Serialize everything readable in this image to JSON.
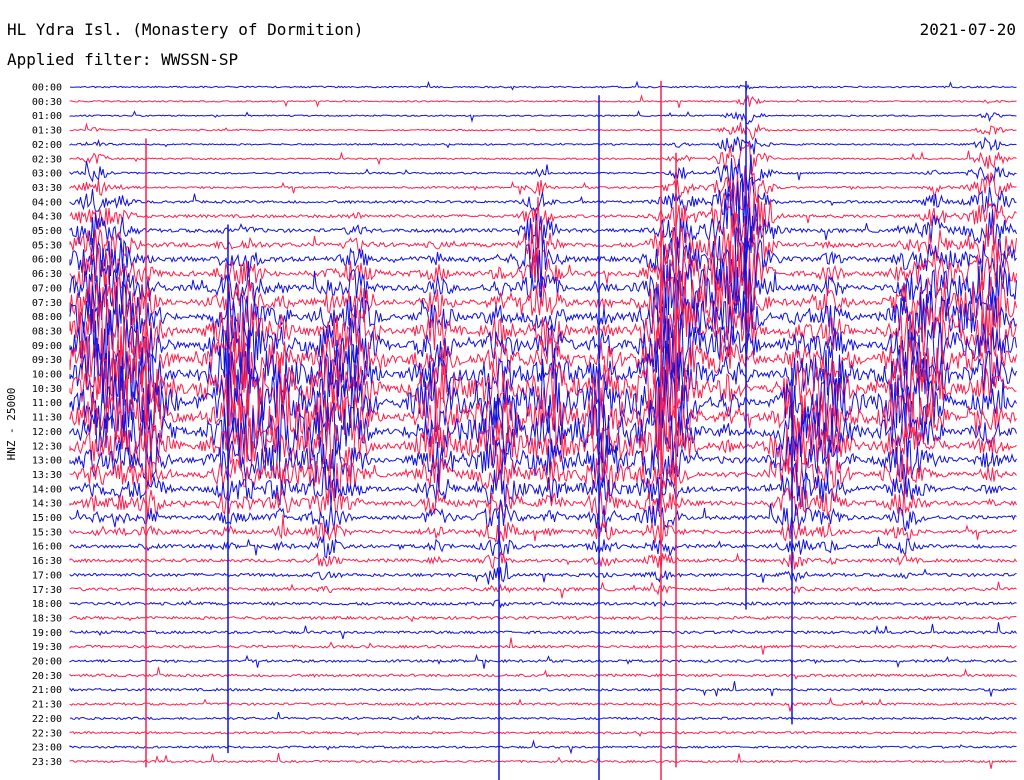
{
  "header": {
    "title": "HL Ydra Isl. (Monastery of Dormition)",
    "date": "2021-07-20",
    "filter": "Applied filter: WWSSN-SP"
  },
  "station": {
    "channel_label": "HNZ - 25000"
  },
  "colors": {
    "trace_a": "#1010e0",
    "trace_b": "#ff1f4b",
    "background": "#ffffff",
    "text": "#000000"
  },
  "chart_data": {
    "type": "line",
    "title": "",
    "xlabel": "",
    "ylabel": "HNZ - 25000",
    "time_labels": [
      "00:00",
      "00:30",
      "01:00",
      "01:30",
      "02:00",
      "02:30",
      "03:00",
      "03:30",
      "04:00",
      "04:30",
      "05:00",
      "05:30",
      "06:00",
      "06:30",
      "07:00",
      "07:30",
      "08:00",
      "08:30",
      "09:00",
      "09:30",
      "10:00",
      "10:30",
      "11:00",
      "11:30",
      "12:00",
      "12:30",
      "13:00",
      "13:30",
      "14:00",
      "14:30",
      "15:00",
      "15:30",
      "16:00",
      "16:30",
      "17:00",
      "17:30",
      "18:00",
      "18:30",
      "19:00",
      "19:30",
      "20:00",
      "20:30",
      "21:00",
      "21:30",
      "22:00",
      "22:30",
      "23:00",
      "23:30"
    ],
    "row_duration_minutes": 30,
    "trace_color_order": [
      "trace_a",
      "trace_b"
    ],
    "activity_level_by_row": [
      0.08,
      0.05,
      0.05,
      0.06,
      0.08,
      0.1,
      0.12,
      0.18,
      0.3,
      0.4,
      0.55,
      0.7,
      0.85,
      0.9,
      0.95,
      0.95,
      0.9,
      0.85,
      0.85,
      0.85,
      0.9,
      0.95,
      1.0,
      1.0,
      1.0,
      1.0,
      0.95,
      0.85,
      0.8,
      0.7,
      0.6,
      0.55,
      0.5,
      0.45,
      0.45,
      0.45,
      0.4,
      0.38,
      0.35,
      0.32,
      0.3,
      0.3,
      0.28,
      0.26,
      0.25,
      0.22,
      0.2,
      0.18
    ],
    "grid": false
  }
}
